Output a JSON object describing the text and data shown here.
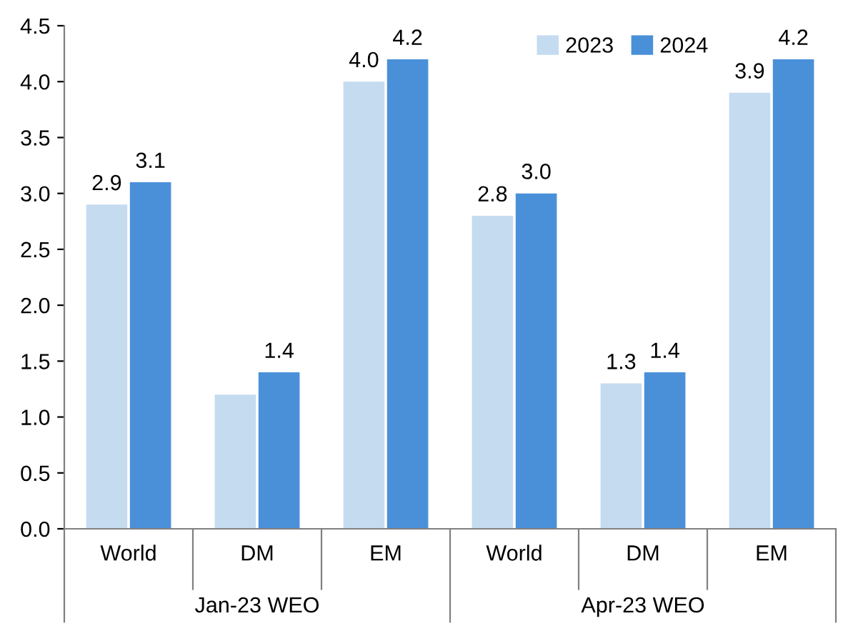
{
  "chart_data": {
    "type": "bar",
    "categories": [
      "World",
      "DM",
      "EM",
      "World",
      "DM",
      "EM"
    ],
    "series": [
      {
        "name": "2023",
        "color": "#c5dbf0",
        "values": [
          2.9,
          1.2,
          4.0,
          2.8,
          1.3,
          3.9
        ],
        "value_labels": [
          "2.9",
          null,
          "4.0",
          "2.8",
          "1.3",
          "3.9"
        ]
      },
      {
        "name": "2024",
        "color": "#4a90d9",
        "values": [
          3.1,
          1.4,
          4.2,
          3.0,
          1.4,
          4.2
        ],
        "value_labels": [
          "3.1",
          "1.4",
          "4.2",
          "3.0",
          "1.4",
          "4.2"
        ]
      }
    ],
    "annotations": [
      "Jan-23 WEO",
      "Apr-23 WEO"
    ],
    "ylim": [
      0,
      4.5
    ],
    "yticks": [
      {
        "value": 0,
        "label": "0.0"
      },
      {
        "value": 0.5,
        "label": "0.5"
      },
      {
        "value": 1,
        "label": "1.0"
      },
      {
        "value": 1.5,
        "label": "1.5"
      },
      {
        "value": 2,
        "label": "2.0"
      },
      {
        "value": 2.5,
        "label": "2.5"
      },
      {
        "value": 3,
        "label": "3.0"
      },
      {
        "value": 3.5,
        "label": "3.5"
      },
      {
        "value": 4,
        "label": "4.0"
      },
      {
        "value": 4.5,
        "label": "4.5"
      }
    ],
    "grid": false,
    "legend": "top right"
  }
}
